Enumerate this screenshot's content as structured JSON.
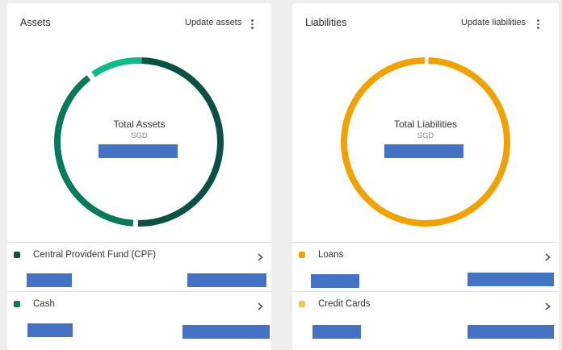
{
  "assets": {
    "title": "Assets",
    "action_label": "Update assets",
    "total_title": "Total Assets",
    "currency": "SGD",
    "total_value": "",
    "donut": {
      "colors": {
        "cpf": "#0b5143",
        "cash": "#087a5b",
        "other": "#0fb98a"
      },
      "segments_fraction": {
        "cpf": 0.5,
        "cash": 0.39,
        "other": 0.11
      }
    },
    "rows": [
      {
        "label": "Central Provident Fund (CPF)",
        "color": "#0b5143",
        "value": "",
        "sub_value": ""
      },
      {
        "label": "Cash",
        "color": "#087a5b",
        "value": "",
        "sub_value": ""
      }
    ]
  },
  "liabilities": {
    "title": "Liabilities",
    "action_label": "Update liabilities",
    "total_title": "Total Liabilities",
    "currency": "SGD",
    "total_value": "",
    "donut": {
      "colors": {
        "loans": "#f0a203"
      },
      "segments_fraction": {
        "loans": 1.0
      }
    },
    "rows": [
      {
        "label": "Loans",
        "color": "#f0a203",
        "value": "",
        "sub_value": ""
      },
      {
        "label": "Credit Cards",
        "color": "#f5c55a",
        "value": "",
        "sub_value": ""
      }
    ]
  },
  "icons": {
    "menu": "kebab-menu-icon",
    "row_arrow": "chevron-right-icon"
  },
  "redaction_color": "#4472c4"
}
